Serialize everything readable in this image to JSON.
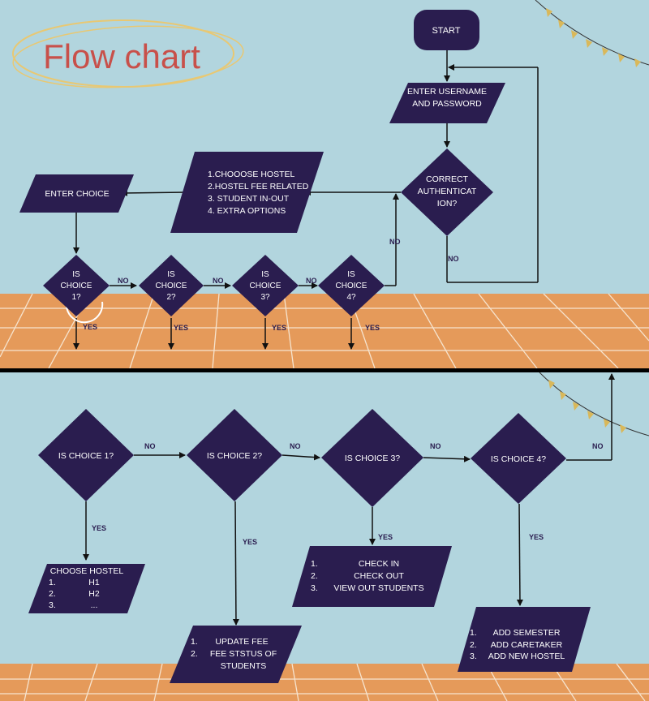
{
  "title": "Flow chart",
  "colors": {
    "background": "#b2d5de",
    "node_fill": "#2a1d4f",
    "node_text": "#ffffff",
    "label_text": "#2a1d4f",
    "floor": "#e59a5a",
    "title_color": "#c8504a",
    "ring": "#e8c873"
  },
  "top_flow": {
    "start": "START",
    "login": [
      "ENTER USERNAME",
      "AND PASSWORD"
    ],
    "auth_check": [
      "CORRECT",
      "AUTHENTICAT",
      "ION?"
    ],
    "menu": [
      "1.CHOOOSE HOSTEL",
      "2.HOSTEL FEE RELATED",
      "3. STUDENT IN-OUT",
      "4. EXTRA OPTIONS"
    ],
    "enter_choice": "ENTER CHOICE",
    "choices": [
      [
        "IS",
        "CHOICE",
        "1?"
      ],
      [
        "IS",
        "CHOICE",
        "2?"
      ],
      [
        "IS",
        "CHOICE",
        "3?"
      ],
      [
        "IS",
        "CHOICE",
        "4?"
      ]
    ],
    "labels": {
      "no": "NO",
      "yes": "YES"
    }
  },
  "bottom_flow": {
    "choices": [
      "IS CHOICE 1?",
      "IS CHOICE 2?",
      "IS CHOICE 3?",
      "IS CHOICE 4?"
    ],
    "labels": {
      "no": "NO",
      "yes": "YES"
    },
    "choose_hostel": {
      "heading": "CHOOSE HOSTEL",
      "items": [
        {
          "num": "1.",
          "text": "H1"
        },
        {
          "num": "2.",
          "text": "H2"
        },
        {
          "num": "3.",
          "text": "..."
        }
      ]
    },
    "update_fee": {
      "items": [
        {
          "num": "1.",
          "text": "UPDATE FEE"
        },
        {
          "num": "2.",
          "text": "FEE STSTUS OF"
        }
      ],
      "continuation": "STUDENTS"
    },
    "check_in_out": {
      "items": [
        {
          "num": "1.",
          "text": "CHECK IN"
        },
        {
          "num": "2.",
          "text": "CHECK OUT"
        },
        {
          "num": "3.",
          "text": "VIEW OUT STUDENTS"
        }
      ]
    },
    "extra_options": {
      "items": [
        {
          "num": "1.",
          "text": "ADD SEMESTER"
        },
        {
          "num": "2.",
          "text": "ADD CARETAKER"
        },
        {
          "num": "3.",
          "text": "ADD NEW HOSTEL"
        }
      ]
    }
  }
}
